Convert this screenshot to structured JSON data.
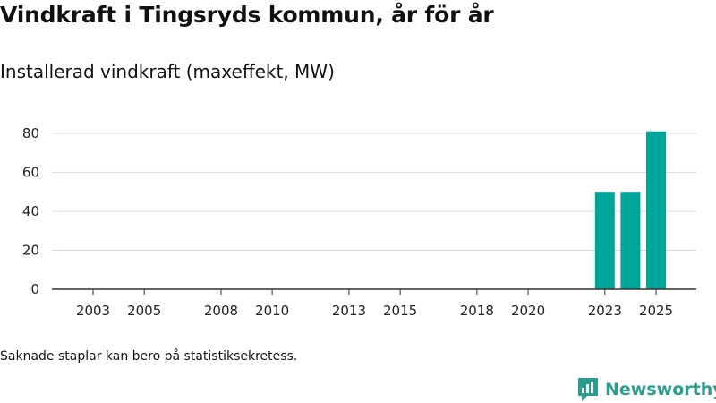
{
  "header": {
    "title": "Vindkraft i Tingsryds kommun, år för år",
    "subtitle": "Installerad vindkraft (maxeffekt, MW)"
  },
  "footnote": "Saknade staplar kan bero på statistiksekretess.",
  "brand": {
    "name": "Newsworthy",
    "icon": "newsworthy-logo-icon",
    "color": "#2a9d8f"
  },
  "chart_data": {
    "type": "bar",
    "title": "Installerad vindkraft (maxeffekt, MW)",
    "xlabel": "",
    "ylabel": "",
    "x": [
      2003,
      2004,
      2005,
      2006,
      2007,
      2008,
      2009,
      2010,
      2011,
      2012,
      2013,
      2014,
      2015,
      2016,
      2017,
      2018,
      2019,
      2020,
      2021,
      2022,
      2023,
      2024,
      2025
    ],
    "values": [
      null,
      null,
      null,
      null,
      null,
      null,
      null,
      null,
      null,
      null,
      null,
      null,
      null,
      null,
      null,
      null,
      null,
      null,
      null,
      null,
      50,
      50,
      81
    ],
    "x_tick_labels": [
      "2003",
      "2005",
      "2008",
      "2010",
      "2013",
      "2015",
      "2018",
      "2020",
      "2023",
      "2025"
    ],
    "y_tick_labels": [
      "0",
      "20",
      "40",
      "60",
      "80"
    ],
    "ylim": [
      0,
      85
    ],
    "grid": true,
    "bar_color": "#00a59a"
  }
}
